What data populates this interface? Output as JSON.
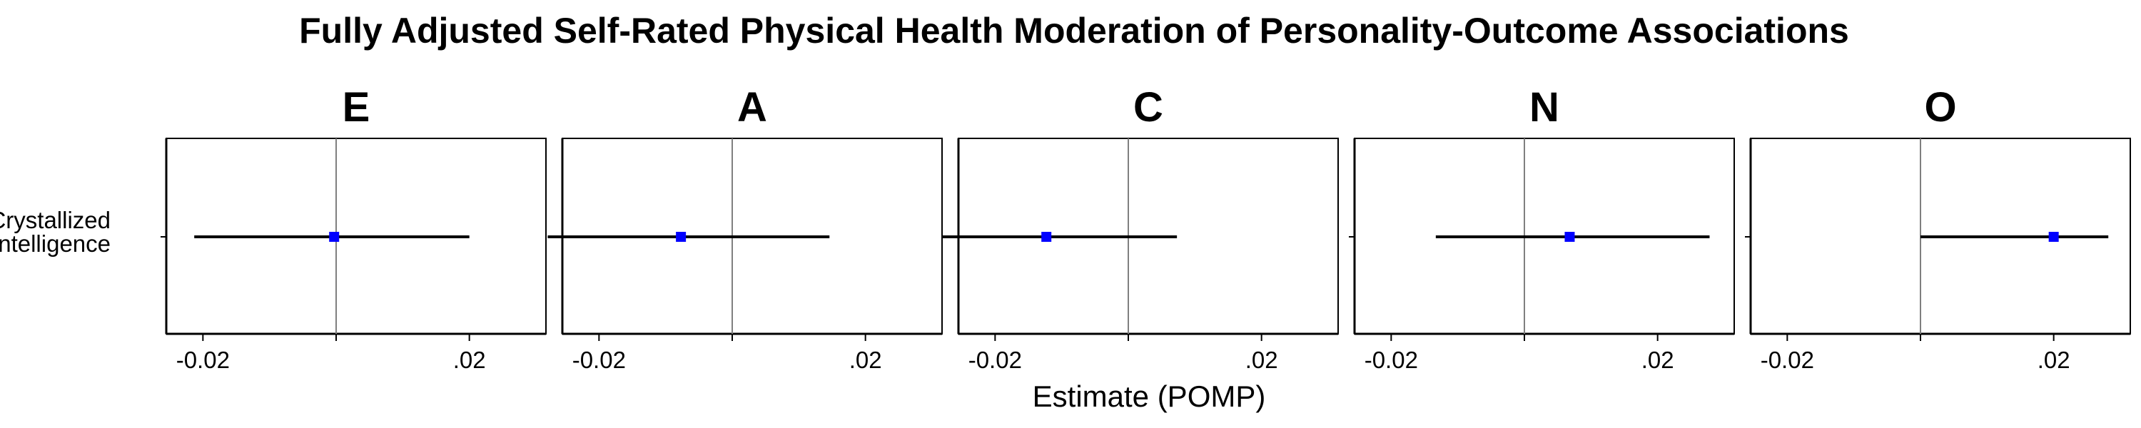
{
  "chart_data": {
    "type": "forest",
    "title": "Fully Adjusted Self-Rated Physical Health Moderation of Personality-Outcome Associations",
    "xlabel": "Estimate (POMP)",
    "ylabel": "",
    "category_lines": [
      "Crystallized",
      "Intelligence"
    ],
    "xlim": [
      -0.0255,
      0.0315
    ],
    "xticks": [
      -0.02,
      0,
      0.02
    ],
    "xtick_labels": [
      "-0.02",
      "",
      ".02"
    ],
    "reference_line": 0,
    "point_color": "#0000ff",
    "facets": [
      {
        "label": "E",
        "estimate": -0.0003,
        "ci": [
          -0.0213,
          0.02
        ]
      },
      {
        "label": "A",
        "estimate": -0.0077,
        "ci": [
          -0.0277,
          0.0146
        ]
      },
      {
        "label": "C",
        "estimate": -0.0123,
        "ci": [
          -0.028,
          0.0073
        ]
      },
      {
        "label": "N",
        "estimate": 0.0068,
        "ci": [
          -0.0133,
          0.0278
        ]
      },
      {
        "label": "O",
        "estimate": 0.02,
        "ci": [
          0,
          0.0282
        ]
      }
    ]
  }
}
